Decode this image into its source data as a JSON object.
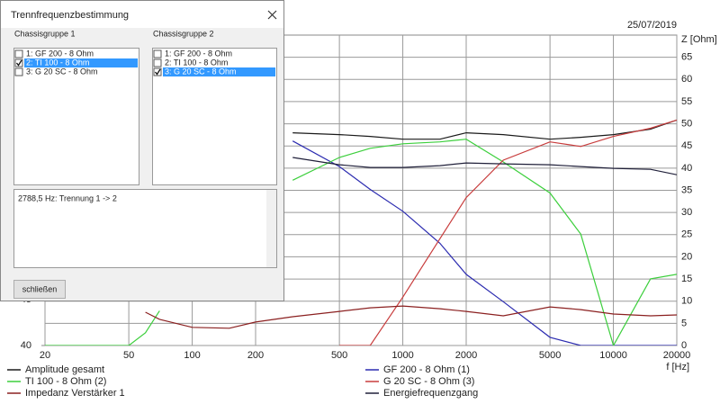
{
  "chart_data": {
    "type": "line",
    "date": "25/07/2019",
    "x_label": "f [Hz]",
    "y2_label": "Z [Ohm]",
    "xscale": "log",
    "x": [
      20,
      50,
      60,
      70,
      100,
      150,
      200,
      300,
      500,
      700,
      1000,
      1500,
      2000,
      3000,
      5000,
      7000,
      10000,
      15000,
      20000
    ],
    "xlim": [
      20,
      20000
    ],
    "xticks": [
      20,
      50,
      100,
      200,
      500,
      1000,
      2000,
      5000,
      10000,
      20000
    ],
    "ylim": [
      40,
      74
    ],
    "yticks": [
      40,
      45
    ],
    "y2lim": [
      0,
      70
    ],
    "y2ticks": [
      0,
      5,
      10,
      15,
      20,
      25,
      30,
      35,
      40,
      45,
      50,
      55,
      60,
      65
    ],
    "grid": true,
    "series": [
      {
        "name": "Amplitude gesamt",
        "color": "#1a1a1a",
        "values": [
          null,
          null,
          null,
          null,
          null,
          null,
          null,
          63.3,
          63.1,
          62.9,
          62.6,
          62.6,
          63.3,
          63.1,
          62.6,
          62.8,
          63.1,
          63.7,
          64.7
        ]
      },
      {
        "name": "GF 200 - 8 Ohm (1)",
        "color": "#2b2bb0",
        "values": [
          null,
          null,
          null,
          null,
          null,
          null,
          null,
          62.4,
          59.6,
          57.1,
          54.7,
          51.2,
          47.8,
          44.8,
          40.9,
          40,
          40,
          40,
          40
        ]
      },
      {
        "name": "TI 100 - 8 Ohm (2)",
        "color": "#3ccf3c",
        "values": [
          40,
          40,
          41.4,
          43.8,
          null,
          null,
          null,
          58.1,
          60.6,
          61.6,
          62.1,
          62.3,
          62.6,
          60.1,
          56.7,
          52.2,
          40,
          47.3,
          47.8
        ]
      },
      {
        "name": "G 20 SC - 8 Ohm (3)",
        "color": "#c83c3c",
        "values": [
          null,
          null,
          null,
          null,
          null,
          null,
          null,
          null,
          40,
          40,
          45.3,
          51.7,
          56.2,
          60.3,
          62.3,
          61.8,
          62.9,
          63.8,
          64.7
        ]
      },
      {
        "name": "Impedanz Verstärker 1",
        "color": "#8b2020",
        "axis": "y2",
        "values": [
          null,
          null,
          7.5,
          5.9,
          4.1,
          3.9,
          5.3,
          6.5,
          7.7,
          8.5,
          8.9,
          8.3,
          7.7,
          6.7,
          8.7,
          8.1,
          7.1,
          6.7,
          6.9
        ]
      },
      {
        "name": "Energiefrequenzgang",
        "color": "#20203a",
        "values": [
          null,
          null,
          null,
          null,
          null,
          null,
          null,
          60.6,
          59.8,
          59.5,
          59.5,
          59.7,
          60.0,
          59.9,
          59.8,
          59.6,
          59.4,
          59.3,
          58.7
        ]
      }
    ]
  },
  "dialog": {
    "title": "Trennfrequenzbestimmung",
    "group1": {
      "label": "Chassisgruppe 1",
      "items": [
        {
          "text": "1: GF 200 - 8 Ohm",
          "checked": false,
          "selected": false
        },
        {
          "text": "2: TI 100 - 8 Ohm",
          "checked": true,
          "selected": true
        },
        {
          "text": "3: G 20 SC - 8 Ohm",
          "checked": false,
          "selected": false
        }
      ]
    },
    "group2": {
      "label": "Chassisgruppe 2",
      "items": [
        {
          "text": "1: GF 200 - 8 Ohm",
          "checked": false,
          "selected": false
        },
        {
          "text": "2: TI 100 - 8 Ohm",
          "checked": false,
          "selected": false
        },
        {
          "text": "3: G 20 SC - 8 Ohm",
          "checked": true,
          "selected": true
        }
      ]
    },
    "message": "2788,5 Hz: Trennung 1 -> 2",
    "button": "schließen"
  }
}
